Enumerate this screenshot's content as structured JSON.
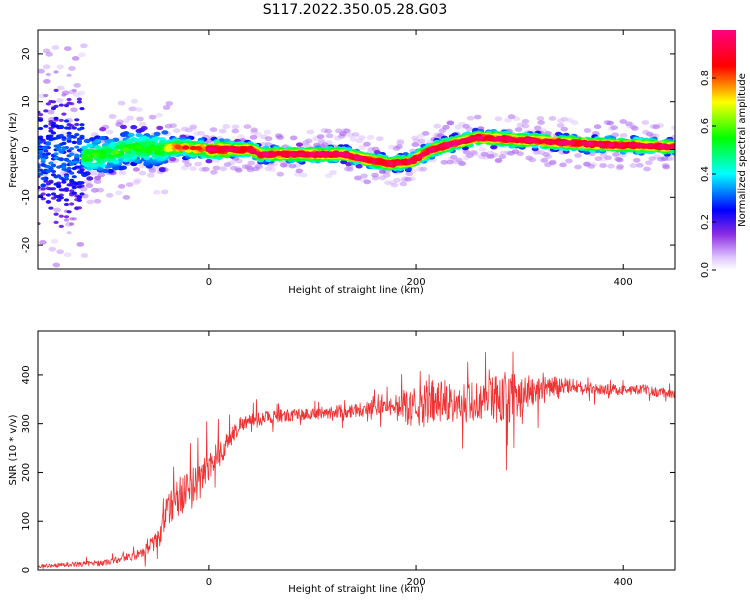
{
  "title": "S117.2022.350.05.28.G03",
  "chart_data": [
    {
      "type": "heatmap",
      "xlabel": "Height of straight line (km)",
      "ylabel": "Frequency (Hz)",
      "xlim": [
        -165,
        450
      ],
      "ylim": [
        -25,
        25
      ],
      "x_ticks": [
        0,
        200,
        400
      ],
      "y_ticks": [
        -20,
        -10,
        0,
        10,
        20
      ],
      "colorbar": {
        "label": "Normalized spectral amplitude",
        "range": [
          0.0,
          1.0
        ],
        "ticks": [
          "0.0",
          "0.2",
          "0.4",
          "0.6",
          "0.8"
        ],
        "tick_values": [
          0.0,
          0.2,
          0.4,
          0.6,
          0.8
        ],
        "colormap": [
          "#ffffff",
          "#e0c8ff",
          "#8a2be2",
          "#0000ff",
          "#00ffff",
          "#00ff00",
          "#ffff00",
          "#ff0000",
          "#ff0080"
        ]
      },
      "ridge_frequency_hz": [
        [
          -150,
          -2.0
        ],
        [
          -100,
          -1.0
        ],
        [
          -70,
          0.5
        ],
        [
          -50,
          0.0
        ],
        [
          -30,
          0.5
        ],
        [
          0,
          0.0
        ],
        [
          40,
          0.0
        ],
        [
          50,
          -1.0
        ],
        [
          130,
          -1.0
        ],
        [
          150,
          -2.0
        ],
        [
          175,
          -3.0
        ],
        [
          195,
          -2.5
        ],
        [
          215,
          0.0
        ],
        [
          240,
          1.5
        ],
        [
          260,
          2.5
        ],
        [
          300,
          2.0
        ],
        [
          340,
          1.5
        ],
        [
          380,
          1.0
        ],
        [
          420,
          0.8
        ],
        [
          450,
          0.5
        ]
      ]
    },
    {
      "type": "line",
      "xlabel": "Height of straight line (km)",
      "ylabel": "SNR (10 * v/v)",
      "xlim": [
        -165,
        450
      ],
      "ylim": [
        0,
        490
      ],
      "x_ticks": [
        0,
        200,
        400
      ],
      "y_ticks": [
        0,
        100,
        200,
        300,
        400
      ],
      "series": [
        {
          "color": "#ee3333",
          "trend": [
            [
              -165,
              8
            ],
            [
              -100,
              15
            ],
            [
              -70,
              30
            ],
            [
              -50,
              60
            ],
            [
              -40,
              120
            ],
            [
              -30,
              150
            ],
            [
              -15,
              170
            ],
            [
              0,
              210
            ],
            [
              15,
              250
            ],
            [
              30,
              300
            ],
            [
              60,
              315
            ],
            [
              100,
              320
            ],
            [
              150,
              330
            ],
            [
              180,
              340
            ],
            [
              200,
              330
            ],
            [
              215,
              355
            ],
            [
              240,
              340
            ],
            [
              270,
              350
            ],
            [
              300,
              360
            ],
            [
              340,
              380
            ],
            [
              380,
              370
            ],
            [
              420,
              370
            ],
            [
              450,
              360
            ]
          ],
          "noise_amplitude": [
            [
              -165,
              6
            ],
            [
              -100,
              10
            ],
            [
              -70,
              15
            ],
            [
              -50,
              30
            ],
            [
              -40,
              50
            ],
            [
              -30,
              70
            ],
            [
              -10,
              70
            ],
            [
              10,
              50
            ],
            [
              30,
              25
            ],
            [
              100,
              20
            ],
            [
              180,
              30
            ],
            [
              190,
              60
            ],
            [
              215,
              90
            ],
            [
              240,
              60
            ],
            [
              260,
              80
            ],
            [
              290,
              90
            ],
            [
              320,
              40
            ],
            [
              360,
              20
            ],
            [
              450,
              15
            ]
          ]
        }
      ]
    }
  ]
}
